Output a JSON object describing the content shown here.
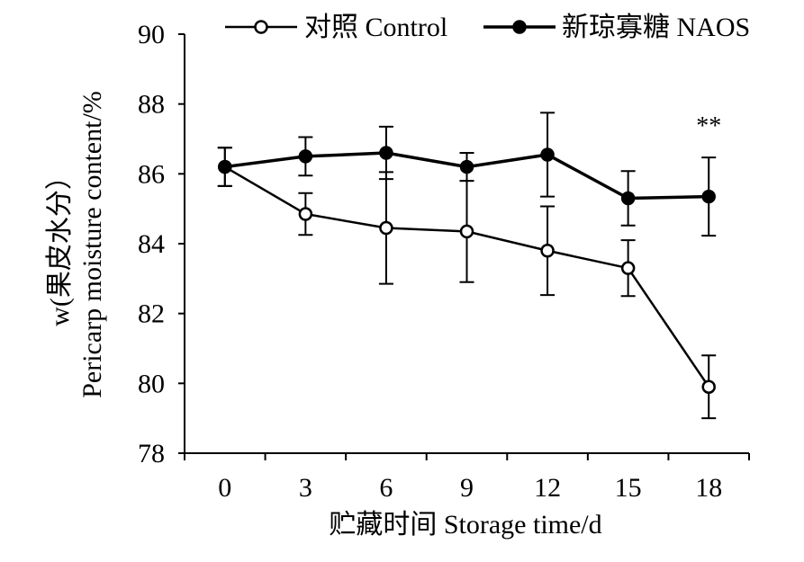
{
  "chart_data": {
    "type": "line",
    "title": "",
    "xlabel": "贮藏时间 Storage time/d",
    "ylabel_line1": "w(果皮水分）",
    "ylabel_line2": "Pericarp moisture content/%",
    "x": [
      0,
      3,
      6,
      9,
      12,
      15,
      18
    ],
    "xlim": [
      -1.5,
      19.5
    ],
    "ylim": [
      78,
      90
    ],
    "yticks": [
      78,
      80,
      82,
      84,
      86,
      88,
      90
    ],
    "grid": false,
    "legend_position": "top",
    "series": [
      {
        "name": "对照 Control",
        "marker": "open-circle",
        "values": [
          86.2,
          84.85,
          84.45,
          84.35,
          83.8,
          83.3,
          79.9
        ],
        "errors": [
          0.55,
          0.6,
          1.6,
          1.45,
          1.27,
          0.8,
          0.9
        ]
      },
      {
        "name": "新琼寡糖 NAOS",
        "marker": "filled-circle",
        "values": [
          86.2,
          86.5,
          86.6,
          86.2,
          86.55,
          85.3,
          85.35
        ],
        "errors": [
          0.55,
          0.55,
          0.75,
          0.4,
          1.2,
          0.78,
          1.12
        ]
      }
    ],
    "annotations": [
      {
        "x": 18,
        "y": 87.5,
        "text": "**"
      }
    ]
  }
}
